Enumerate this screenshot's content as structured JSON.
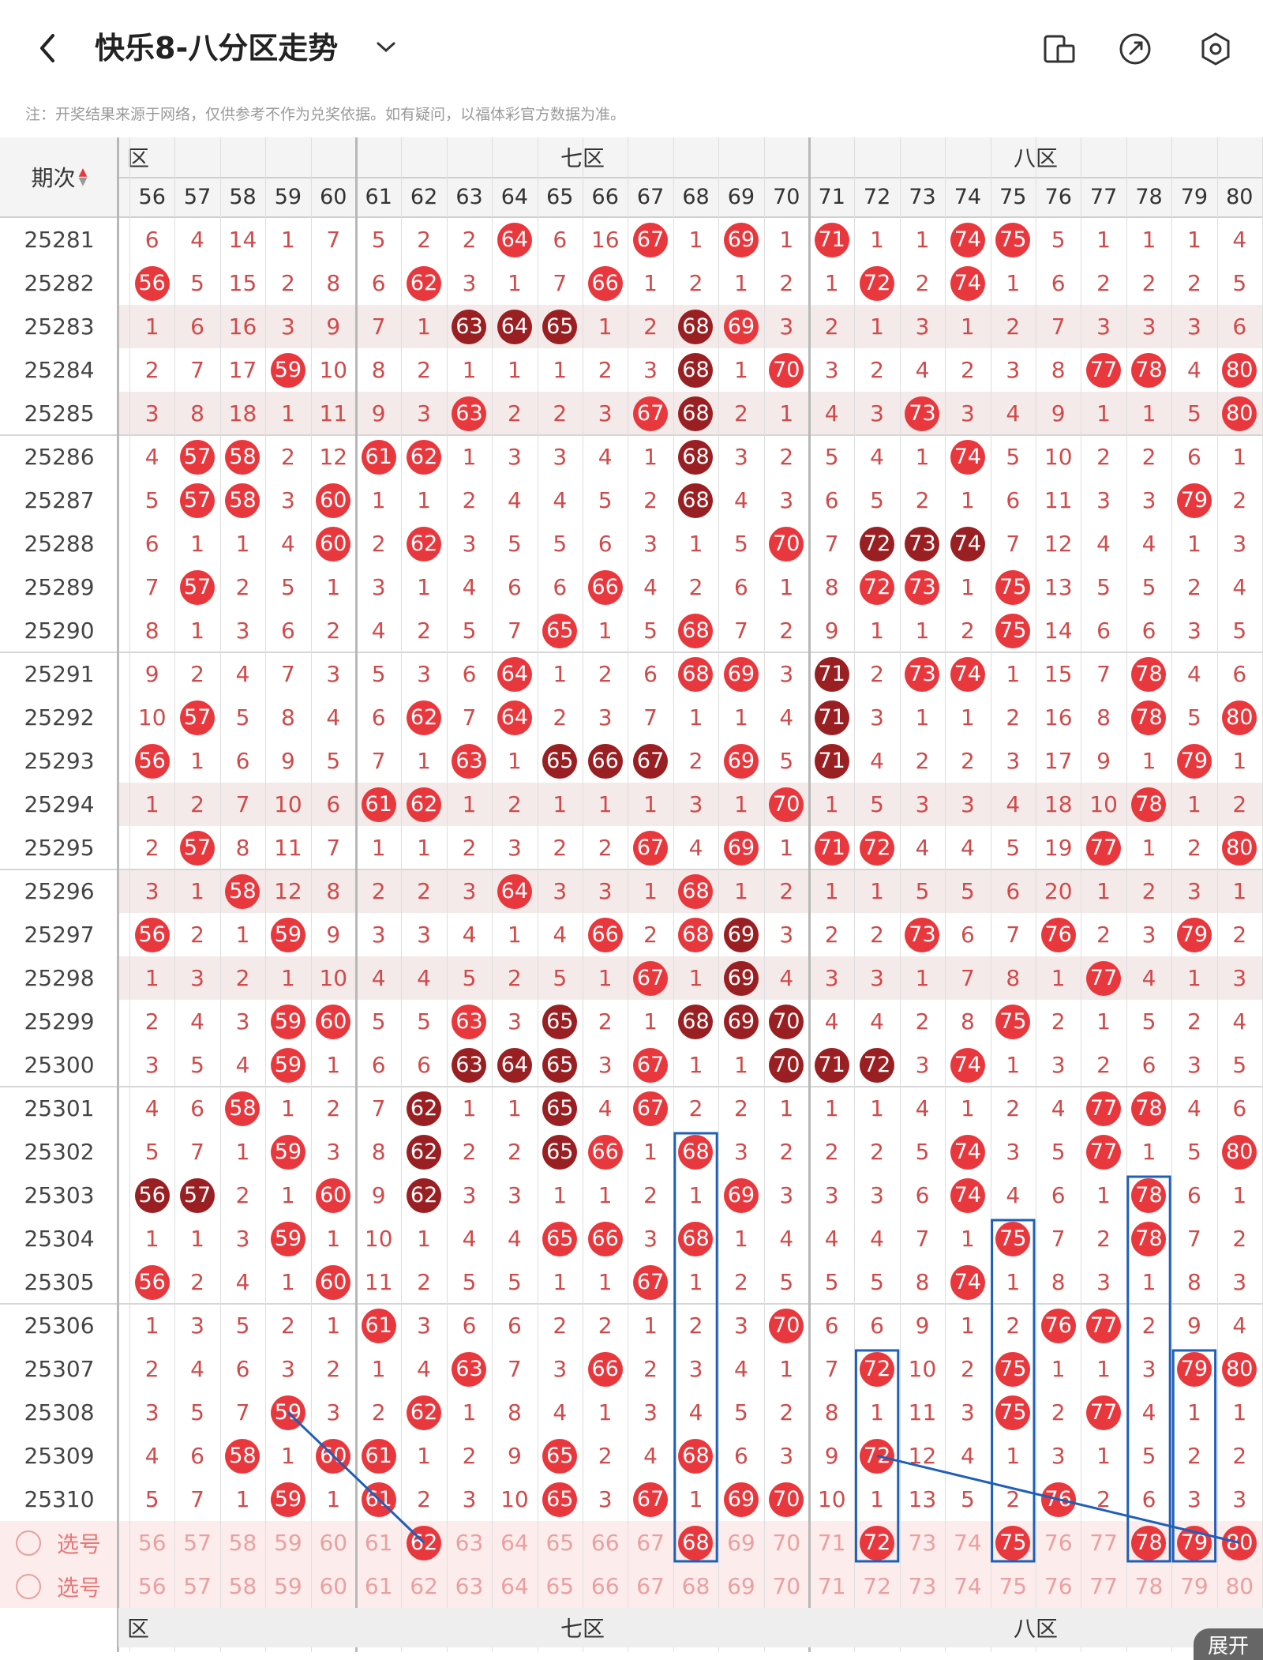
{
  "header": {
    "title": "快乐8-八分区走势",
    "back_icon": "back-arrow-icon",
    "dropdown_icon": "chevron-down-icon",
    "actions": [
      "device-icon",
      "share-icon",
      "settings-icon"
    ]
  },
  "note": "注：开奖结果来源于网络，仅供参考不作为兑奖依据。如有疑问，以福体彩官方数据为准。",
  "table": {
    "period_header": "期次",
    "zones": [
      {
        "label": "六区",
        "shown": "区"
      },
      {
        "label": "七区"
      },
      {
        "label": "八区"
      }
    ],
    "columns": [
      "56",
      "57",
      "58",
      "59",
      "60",
      "61",
      "62",
      "63",
      "64",
      "65",
      "66",
      "67",
      "68",
      "69",
      "70",
      "71",
      "72",
      "73",
      "74",
      "75",
      "76",
      "77",
      "78",
      "79",
      "80"
    ],
    "rows": [
      {
        "period": "25281",
        "cells": [
          "6",
          "4",
          "14",
          "1",
          "7",
          "5",
          "2",
          "2",
          "64",
          "6",
          "16",
          "67",
          "1",
          "69",
          "1",
          "71",
          "1",
          "1",
          "74",
          "75",
          "5",
          "1",
          "1",
          "1",
          "4"
        ]
      },
      {
        "period": "25282",
        "cells": [
          "56",
          "5",
          "15",
          "2",
          "8",
          "6",
          "62",
          "3",
          "1",
          "7",
          "66",
          "1",
          "2",
          "1",
          "2",
          "1",
          "72",
          "2",
          "74",
          "1",
          "6",
          "2",
          "2",
          "2",
          "5"
        ]
      },
      {
        "period": "25283",
        "cells": [
          "1",
          "6",
          "16",
          "3",
          "9",
          "7",
          "1",
          "63",
          "64",
          "65",
          "1",
          "2",
          "68",
          "69",
          "3",
          "2",
          "1",
          "3",
          "1",
          "2",
          "7",
          "3",
          "3",
          "3",
          "6"
        ]
      },
      {
        "period": "25284",
        "cells": [
          "2",
          "7",
          "17",
          "59",
          "10",
          "8",
          "2",
          "1",
          "1",
          "1",
          "2",
          "3",
          "68",
          "1",
          "70",
          "3",
          "2",
          "4",
          "2",
          "3",
          "8",
          "77",
          "78",
          "4",
          "80"
        ]
      },
      {
        "period": "25285",
        "cells": [
          "3",
          "8",
          "18",
          "1",
          "11",
          "9",
          "3",
          "63",
          "2",
          "2",
          "3",
          "67",
          "68",
          "2",
          "1",
          "4",
          "3",
          "73",
          "3",
          "4",
          "9",
          "1",
          "1",
          "5",
          "80"
        ]
      },
      {
        "period": "25286",
        "cells": [
          "4",
          "57",
          "58",
          "2",
          "12",
          "61",
          "62",
          "1",
          "3",
          "3",
          "4",
          "1",
          "68",
          "3",
          "2",
          "5",
          "4",
          "1",
          "74",
          "5",
          "10",
          "2",
          "2",
          "6",
          "1"
        ]
      },
      {
        "period": "25287",
        "cells": [
          "5",
          "57",
          "58",
          "3",
          "60",
          "1",
          "1",
          "2",
          "4",
          "4",
          "5",
          "2",
          "68",
          "4",
          "3",
          "6",
          "5",
          "2",
          "1",
          "6",
          "11",
          "3",
          "3",
          "79",
          "2"
        ]
      },
      {
        "period": "25288",
        "cells": [
          "6",
          "1",
          "1",
          "4",
          "60",
          "2",
          "62",
          "3",
          "5",
          "5",
          "6",
          "3",
          "1",
          "5",
          "70",
          "7",
          "72",
          "73",
          "74",
          "7",
          "12",
          "4",
          "4",
          "1",
          "3"
        ]
      },
      {
        "period": "25289",
        "cells": [
          "7",
          "57",
          "2",
          "5",
          "1",
          "3",
          "1",
          "4",
          "6",
          "6",
          "66",
          "4",
          "2",
          "6",
          "1",
          "8",
          "72",
          "73",
          "1",
          "75",
          "13",
          "5",
          "5",
          "2",
          "4"
        ]
      },
      {
        "period": "25290",
        "cells": [
          "8",
          "1",
          "3",
          "6",
          "2",
          "4",
          "2",
          "5",
          "7",
          "65",
          "1",
          "5",
          "68",
          "7",
          "2",
          "9",
          "1",
          "1",
          "2",
          "75",
          "14",
          "6",
          "6",
          "3",
          "5"
        ]
      },
      {
        "period": "25291",
        "cells": [
          "9",
          "2",
          "4",
          "7",
          "3",
          "5",
          "3",
          "6",
          "64",
          "1",
          "2",
          "6",
          "68",
          "69",
          "3",
          "71",
          "2",
          "73",
          "74",
          "1",
          "15",
          "7",
          "78",
          "4",
          "6"
        ]
      },
      {
        "period": "25292",
        "cells": [
          "10",
          "57",
          "5",
          "8",
          "4",
          "6",
          "62",
          "7",
          "64",
          "2",
          "3",
          "7",
          "1",
          "1",
          "4",
          "71",
          "3",
          "1",
          "1",
          "2",
          "16",
          "8",
          "78",
          "5",
          "80"
        ]
      },
      {
        "period": "25293",
        "cells": [
          "56",
          "1",
          "6",
          "9",
          "5",
          "7",
          "1",
          "63",
          "1",
          "65",
          "66",
          "67",
          "2",
          "69",
          "5",
          "71",
          "4",
          "2",
          "2",
          "3",
          "17",
          "9",
          "1",
          "79",
          "1"
        ]
      },
      {
        "period": "25294",
        "cells": [
          "1",
          "2",
          "7",
          "10",
          "6",
          "61",
          "62",
          "1",
          "2",
          "1",
          "1",
          "1",
          "3",
          "1",
          "70",
          "1",
          "5",
          "3",
          "3",
          "4",
          "18",
          "10",
          "78",
          "1",
          "2"
        ]
      },
      {
        "period": "25295",
        "cells": [
          "2",
          "57",
          "8",
          "11",
          "7",
          "1",
          "1",
          "2",
          "3",
          "2",
          "2",
          "67",
          "4",
          "69",
          "1",
          "71",
          "72",
          "4",
          "4",
          "5",
          "19",
          "77",
          "1",
          "2",
          "80"
        ]
      },
      {
        "period": "25296",
        "cells": [
          "3",
          "1",
          "58",
          "12",
          "8",
          "2",
          "2",
          "3",
          "64",
          "3",
          "3",
          "1",
          "68",
          "1",
          "2",
          "1",
          "1",
          "5",
          "5",
          "6",
          "20",
          "1",
          "2",
          "3",
          "1"
        ]
      },
      {
        "period": "25297",
        "cells": [
          "56",
          "2",
          "1",
          "59",
          "9",
          "3",
          "3",
          "4",
          "1",
          "4",
          "66",
          "2",
          "68",
          "69",
          "3",
          "2",
          "2",
          "73",
          "6",
          "7",
          "76",
          "2",
          "3",
          "79",
          "2"
        ]
      },
      {
        "period": "25298",
        "cells": [
          "1",
          "3",
          "2",
          "1",
          "10",
          "4",
          "4",
          "5",
          "2",
          "5",
          "1",
          "67",
          "1",
          "69",
          "4",
          "3",
          "3",
          "1",
          "7",
          "8",
          "1",
          "77",
          "4",
          "1",
          "3"
        ]
      },
      {
        "period": "25299",
        "cells": [
          "2",
          "4",
          "3",
          "59",
          "60",
          "5",
          "5",
          "63",
          "3",
          "65",
          "2",
          "1",
          "68",
          "69",
          "70",
          "4",
          "4",
          "2",
          "8",
          "75",
          "2",
          "1",
          "5",
          "2",
          "4"
        ]
      },
      {
        "period": "25300",
        "cells": [
          "3",
          "5",
          "4",
          "59",
          "1",
          "6",
          "6",
          "63",
          "64",
          "65",
          "3",
          "67",
          "1",
          "1",
          "70",
          "71",
          "72",
          "3",
          "74",
          "1",
          "3",
          "2",
          "6",
          "3",
          "5"
        ]
      },
      {
        "period": "25301",
        "cells": [
          "4",
          "6",
          "58",
          "1",
          "2",
          "7",
          "62",
          "1",
          "1",
          "65",
          "4",
          "67",
          "2",
          "2",
          "1",
          "1",
          "1",
          "4",
          "1",
          "2",
          "4",
          "77",
          "78",
          "4",
          "6"
        ]
      },
      {
        "period": "25302",
        "cells": [
          "5",
          "7",
          "1",
          "59",
          "3",
          "8",
          "62",
          "2",
          "2",
          "65",
          "66",
          "1",
          "68",
          "3",
          "2",
          "2",
          "2",
          "5",
          "74",
          "3",
          "5",
          "77",
          "1",
          "5",
          "80"
        ]
      },
      {
        "period": "25303",
        "cells": [
          "56",
          "57",
          "2",
          "1",
          "60",
          "9",
          "62",
          "3",
          "3",
          "1",
          "1",
          "2",
          "1",
          "69",
          "3",
          "3",
          "3",
          "6",
          "74",
          "4",
          "6",
          "1",
          "78",
          "6",
          "1"
        ]
      },
      {
        "period": "25304",
        "cells": [
          "1",
          "1",
          "3",
          "59",
          "1",
          "10",
          "1",
          "4",
          "4",
          "65",
          "66",
          "3",
          "68",
          "1",
          "4",
          "4",
          "4",
          "7",
          "1",
          "75",
          "7",
          "2",
          "78",
          "7",
          "2"
        ]
      },
      {
        "period": "25305",
        "cells": [
          "56",
          "2",
          "4",
          "1",
          "60",
          "11",
          "2",
          "5",
          "5",
          "1",
          "1",
          "67",
          "1",
          "2",
          "5",
          "5",
          "5",
          "8",
          "74",
          "1",
          "8",
          "3",
          "1",
          "8",
          "3"
        ]
      },
      {
        "period": "25306",
        "cells": [
          "1",
          "3",
          "5",
          "2",
          "1",
          "61",
          "3",
          "6",
          "6",
          "2",
          "2",
          "1",
          "2",
          "3",
          "70",
          "6",
          "6",
          "9",
          "1",
          "2",
          "76",
          "77",
          "2",
          "9",
          "4"
        ]
      },
      {
        "period": "25307",
        "cells": [
          "2",
          "4",
          "6",
          "3",
          "2",
          "1",
          "4",
          "63",
          "7",
          "3",
          "66",
          "2",
          "3",
          "4",
          "1",
          "7",
          "72",
          "10",
          "2",
          "75",
          "1",
          "1",
          "3",
          "79",
          "80"
        ]
      },
      {
        "period": "25308",
        "cells": [
          "3",
          "5",
          "7",
          "59",
          "3",
          "2",
          "62",
          "1",
          "8",
          "4",
          "1",
          "3",
          "4",
          "5",
          "2",
          "8",
          "1",
          "11",
          "3",
          "75",
          "2",
          "77",
          "4",
          "1",
          "1"
        ]
      },
      {
        "period": "25309",
        "cells": [
          "4",
          "6",
          "58",
          "1",
          "60",
          "61",
          "1",
          "2",
          "9",
          "65",
          "2",
          "4",
          "68",
          "6",
          "3",
          "9",
          "72",
          "12",
          "4",
          "1",
          "3",
          "1",
          "5",
          "2",
          "2"
        ]
      },
      {
        "period": "25310",
        "cells": [
          "5",
          "7",
          "1",
          "59",
          "1",
          "61",
          "2",
          "3",
          "10",
          "65",
          "3",
          "67",
          "1",
          "69",
          "70",
          "10",
          "1",
          "13",
          "5",
          "2",
          "76",
          "2",
          "6",
          "3",
          "3"
        ]
      }
    ],
    "dark_balls": [
      "25283:63",
      "25283:64",
      "25283:65",
      "25283:68",
      "25284:68",
      "25285:68",
      "25286:68",
      "25287:68",
      "25288:72",
      "25288:73",
      "25288:74",
      "25291:71",
      "25292:71",
      "25293:71",
      "25293:65",
      "25293:66",
      "25293:67",
      "25297:69",
      "25298:69",
      "25299:65",
      "25299:68",
      "25299:69",
      "25299:70",
      "25300:63",
      "25300:64",
      "25300:65",
      "25300:70",
      "25300:71",
      "25300:72",
      "25301:62",
      "25301:65",
      "25302:62",
      "25302:65",
      "25303:56",
      "25303:57",
      "25303:62"
    ],
    "shaded_rows": [
      "25283",
      "25285",
      "25294",
      "25296",
      "25298"
    ],
    "select_rows": [
      {
        "label": "选号",
        "picked": [
          "62",
          "68",
          "72",
          "75",
          "78",
          "79",
          "80"
        ]
      },
      {
        "label": "选号",
        "picked": []
      }
    ],
    "footer_zones": [
      "区",
      "七区",
      "八区"
    ],
    "expand_label": "展开"
  },
  "colors": {
    "ball_red": "#e8383d",
    "ball_dark": "#9a1f22",
    "line_blue": "#1e5fb8",
    "text_red": "#d04a4a"
  }
}
